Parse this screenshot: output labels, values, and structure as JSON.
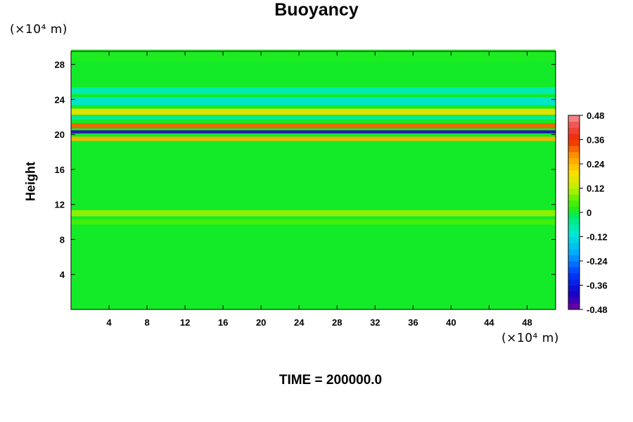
{
  "chart_data": {
    "type": "heatmap",
    "title": "Buoyancy",
    "xlabel": "",
    "ylabel": "Height",
    "x_unit": "(×10⁴ m)",
    "y_unit": "(×10⁴ m)",
    "footer": "TIME = 200000.0",
    "xlim": [
      0,
      51
    ],
    "ylim": [
      0,
      29.5
    ],
    "xticks": [
      4,
      8,
      12,
      16,
      20,
      24,
      28,
      32,
      36,
      40,
      44,
      48
    ],
    "yticks": [
      4,
      8,
      12,
      16,
      20,
      24,
      28
    ],
    "colorbar": {
      "range": [
        -0.48,
        0.48
      ],
      "tick_values": [
        0.48,
        0.36,
        0.24,
        0.12,
        0,
        -0.12,
        -0.24,
        -0.36,
        -0.48
      ],
      "tick_labels": [
        "0.48",
        "0.36",
        "0.24",
        "0.12",
        "0",
        "-0.12",
        "-0.24",
        "-0.36",
        "-0.48"
      ]
    },
    "background_value": 0,
    "bands": [
      {
        "y": 29.0,
        "value": 0.01,
        "thickness": 1.4
      },
      {
        "y": 25.0,
        "value": -0.08,
        "thickness": 0.8
      },
      {
        "y": 23.8,
        "value": -0.11,
        "thickness": 0.9
      },
      {
        "y": 22.6,
        "value": 0.18,
        "thickness": 0.7
      },
      {
        "y": 21.9,
        "value": -0.06,
        "thickness": 0.4
      },
      {
        "y": 21.0,
        "value": 0.32,
        "thickness": 0.6
      },
      {
        "y": 20.3,
        "value": -0.42,
        "thickness": 0.35
      },
      {
        "y": 19.5,
        "value": 0.25,
        "thickness": 0.5
      },
      {
        "y": 11.0,
        "value": 0.1,
        "thickness": 0.7
      },
      {
        "y": 10.0,
        "value": 0.05,
        "thickness": 0.6
      }
    ]
  }
}
